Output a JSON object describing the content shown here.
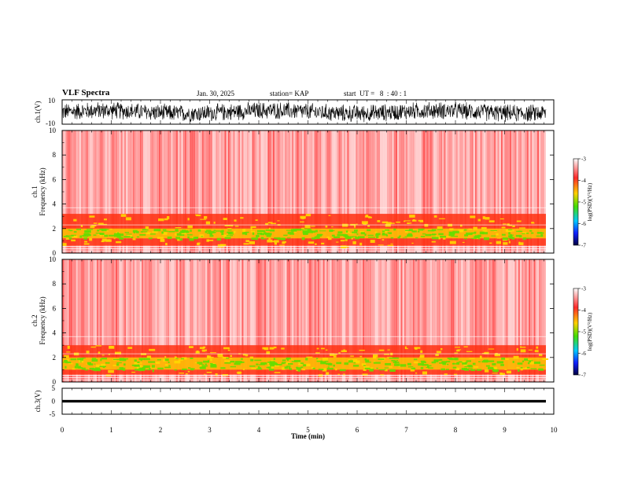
{
  "header": {
    "title": "VLF Spectra",
    "date": "Jan. 30, 2025",
    "station": "station= KAP",
    "start": "start  UT =   8  : 40 : 1"
  },
  "colors": {
    "spectrogram_low": "#ffffff",
    "spectrogram_mid": "#ff2020",
    "spectrogram_band": "#ffd800",
    "spectrogram_green": "#66dd00",
    "trace": "#000000"
  },
  "chart_data": [
    {
      "type": "line",
      "name": "ch1-waveform",
      "ylabel": "ch.1(V)",
      "ylim": [
        -10,
        10
      ],
      "y_ticks": [
        "10",
        "-10"
      ],
      "xlim": [
        0,
        10
      ],
      "description_values": {
        "amplitude_range": [
          -8,
          8
        ]
      }
    },
    {
      "type": "heatmap",
      "name": "ch1-spectrogram",
      "ylabel": "ch.1",
      "ylabel2": "Frequency  (kHz)",
      "ylim": [
        0,
        10
      ],
      "y_ticks": [
        "0",
        "2",
        "4",
        "6",
        "8",
        "10"
      ],
      "xlim": [
        0,
        9.85
      ],
      "colorbar": {
        "label": "log(PSD)(V²/Hz)",
        "ticks": [
          "-3",
          "-4",
          "-5",
          "-6",
          "-7"
        ],
        "range": [
          -7,
          -3
        ]
      },
      "bands_khz": {
        "strong_low": [
          0.6,
          3.2
        ],
        "green_core": [
          1.2,
          2.0
        ]
      }
    },
    {
      "type": "heatmap",
      "name": "ch2-spectrogram",
      "ylabel": "ch.2",
      "ylabel2": "Frequency  (kHz)",
      "ylim": [
        0,
        10
      ],
      "y_ticks": [
        "0",
        "2",
        "4",
        "6",
        "8",
        "10"
      ],
      "xlim": [
        0,
        9.85
      ],
      "colorbar": {
        "label": "log(PSD)(V²/Hz)",
        "ticks": [
          "-3",
          "-4",
          "-5",
          "-6",
          "-7"
        ],
        "range": [
          -7,
          -3
        ]
      },
      "bands_khz": {
        "strong_low": [
          0.6,
          3.0
        ],
        "green_core": [
          1.0,
          2.0
        ]
      }
    },
    {
      "type": "line",
      "name": "ch3-waveform",
      "ylabel": "ch.3(V)",
      "ylim": [
        -5,
        5
      ],
      "y_ticks": [
        "5",
        "0",
        "-5"
      ],
      "xlim": [
        0,
        10
      ],
      "description_values": {
        "amplitude_range": [
          -0.5,
          0.5
        ],
        "offset": 0
      }
    }
  ],
  "xaxis": {
    "label": "Time  (min)",
    "ticks": [
      "0",
      "1",
      "2",
      "3",
      "4",
      "5",
      "6",
      "7",
      "8",
      "9",
      "10"
    ],
    "range": [
      0,
      10
    ]
  }
}
